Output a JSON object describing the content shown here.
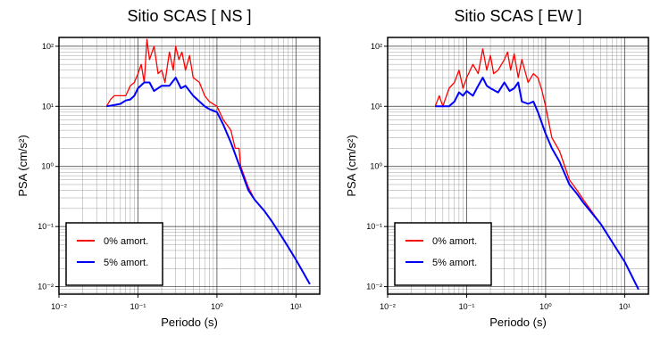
{
  "chart_data": [
    {
      "type": "line",
      "title": "Sitio SCAS [ NS ]",
      "x_label": "Periodo (s)",
      "y_label": "PSA (cm/s²)",
      "log_x": true,
      "log_y": true,
      "grid": true,
      "legend": "lower left",
      "xlim": [
        0.01,
        20
      ],
      "ylim": [
        0.0075,
        140
      ],
      "xticks": [
        {
          "value": 0.01,
          "label": "10⁻²"
        },
        {
          "value": 0.1,
          "label": "10⁻¹"
        },
        {
          "value": 1,
          "label": "10⁰"
        },
        {
          "value": 10,
          "label": "10¹"
        }
      ],
      "yticks": [
        {
          "value": 0.01,
          "label": "10⁻²"
        },
        {
          "value": 0.1,
          "label": "10⁻¹"
        },
        {
          "value": 1,
          "label": "10⁰"
        },
        {
          "value": 10,
          "label": "10¹"
        },
        {
          "value": 100,
          "label": "10²"
        }
      ],
      "series": [
        {
          "name": "0% amort.",
          "color": "#ff0000",
          "x": [
            0.04,
            0.045,
            0.05,
            0.06,
            0.07,
            0.08,
            0.09,
            0.1,
            0.11,
            0.12,
            0.13,
            0.14,
            0.16,
            0.18,
            0.2,
            0.22,
            0.25,
            0.28,
            0.3,
            0.33,
            0.36,
            0.4,
            0.45,
            0.5,
            0.6,
            0.7,
            0.8,
            1.0,
            1.2,
            1.5,
            1.7,
            1.9,
            2.0,
            2.5,
            3,
            4,
            5,
            7,
            10,
            15
          ],
          "values": [
            10,
            13,
            15,
            15,
            15,
            22,
            25,
            35,
            50,
            25,
            130,
            60,
            100,
            35,
            40,
            25,
            80,
            40,
            100,
            60,
            80,
            40,
            70,
            30,
            25,
            15,
            12,
            10,
            6,
            4,
            2,
            2,
            1,
            0.45,
            0.28,
            0.18,
            0.12,
            0.06,
            0.028,
            0.011
          ]
        },
        {
          "name": "5% amort.",
          "color": "#0000ff",
          "x": [
            0.04,
            0.05,
            0.06,
            0.07,
            0.08,
            0.09,
            0.1,
            0.12,
            0.14,
            0.16,
            0.2,
            0.25,
            0.3,
            0.35,
            0.4,
            0.5,
            0.6,
            0.7,
            0.8,
            1.0,
            1.2,
            1.5,
            2.0,
            2.5,
            3.0,
            4.0,
            5,
            7,
            10,
            15
          ],
          "values": [
            10,
            10.5,
            11,
            12.5,
            13,
            15,
            20,
            25,
            25,
            18,
            22,
            22,
            30,
            20,
            22,
            15,
            12,
            10,
            9,
            8,
            5,
            2.5,
            0.9,
            0.4,
            0.28,
            0.18,
            0.12,
            0.06,
            0.028,
            0.011
          ]
        }
      ]
    },
    {
      "type": "line",
      "title": "Sitio SCAS [ EW ]",
      "x_label": "Periodo (s)",
      "y_label": "PSA (cm/s²)",
      "log_x": true,
      "log_y": true,
      "grid": true,
      "legend": "lower left",
      "xlim": [
        0.01,
        20
      ],
      "ylim": [
        0.0075,
        140
      ],
      "xticks": [
        {
          "value": 0.01,
          "label": "10⁻²"
        },
        {
          "value": 0.1,
          "label": "10⁻¹"
        },
        {
          "value": 1,
          "label": "10⁰"
        },
        {
          "value": 10,
          "label": "10¹"
        }
      ],
      "yticks": [
        {
          "value": 0.01,
          "label": "10⁻²"
        },
        {
          "value": 0.1,
          "label": "10⁻¹"
        },
        {
          "value": 1,
          "label": "10⁰"
        },
        {
          "value": 10,
          "label": "10¹"
        },
        {
          "value": 100,
          "label": "10²"
        }
      ],
      "series": [
        {
          "name": "0% amort.",
          "color": "#ff0000",
          "x": [
            0.04,
            0.045,
            0.05,
            0.06,
            0.07,
            0.08,
            0.09,
            0.1,
            0.12,
            0.14,
            0.16,
            0.18,
            0.2,
            0.22,
            0.25,
            0.3,
            0.33,
            0.36,
            0.4,
            0.45,
            0.5,
            0.6,
            0.7,
            0.8,
            0.9,
            1.0,
            1.2,
            1.5,
            2,
            2.5,
            3,
            5,
            10,
            15
          ],
          "values": [
            10,
            15,
            10,
            20,
            25,
            40,
            20,
            30,
            50,
            35,
            90,
            40,
            70,
            35,
            40,
            60,
            80,
            40,
            75,
            30,
            60,
            25,
            35,
            30,
            18,
            10,
            3,
            1.8,
            0.6,
            0.4,
            0.28,
            0.11,
            0.026,
            0.009
          ]
        },
        {
          "name": "5% amort.",
          "color": "#0000ff",
          "x": [
            0.04,
            0.05,
            0.06,
            0.07,
            0.08,
            0.09,
            0.1,
            0.12,
            0.14,
            0.16,
            0.18,
            0.2,
            0.25,
            0.3,
            0.35,
            0.4,
            0.45,
            0.5,
            0.6,
            0.7,
            0.8,
            1.0,
            1.2,
            1.5,
            2,
            2.5,
            3,
            5,
            10,
            15
          ],
          "values": [
            10,
            10,
            10,
            12,
            17,
            15,
            18,
            15,
            22,
            30,
            22,
            20,
            17,
            25,
            18,
            20,
            25,
            12,
            11,
            12,
            8,
            3.5,
            2,
            1.2,
            0.5,
            0.35,
            0.25,
            0.11,
            0.026,
            0.009
          ]
        }
      ]
    }
  ]
}
